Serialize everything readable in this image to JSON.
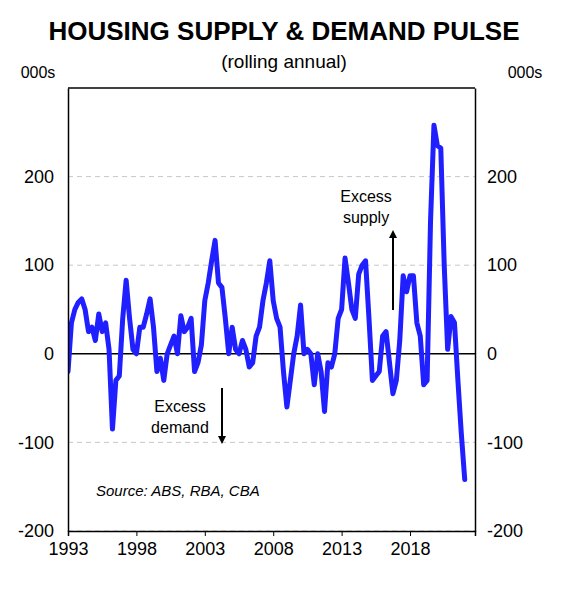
{
  "chart_data": {
    "type": "line",
    "title": "HOUSING SUPPLY & DEMAND PULSE",
    "subtitle": "(rolling annual)",
    "y_label": "000s",
    "y2_label": "000s",
    "source": "Source: ABS, RBA, CBA",
    "annotations": [
      {
        "text": [
          "Excess",
          "supply"
        ]
      },
      {
        "text": [
          "Excess",
          "demand"
        ]
      }
    ],
    "x": [
      1993,
      1993.25,
      1993.5,
      1993.75,
      1994,
      1994.25,
      1994.5,
      1994.75,
      1995,
      1995.25,
      1995.5,
      1995.75,
      1996,
      1996.25,
      1996.5,
      1996.75,
      1997,
      1997.25,
      1997.5,
      1997.75,
      1998,
      1998.25,
      1998.5,
      1998.75,
      1999,
      1999.25,
      1999.5,
      1999.75,
      2000,
      2000.25,
      2000.5,
      2000.75,
      2001,
      2001.25,
      2001.5,
      2001.75,
      2002,
      2002.25,
      2002.5,
      2002.75,
      2003,
      2003.25,
      2003.5,
      2003.75,
      2004,
      2004.25,
      2004.5,
      2004.75,
      2005,
      2005.25,
      2005.5,
      2005.75,
      2006,
      2006.25,
      2006.5,
      2006.75,
      2007,
      2007.25,
      2007.5,
      2007.75,
      2008,
      2008.25,
      2008.5,
      2008.75,
      2009,
      2009.25,
      2009.5,
      2009.75,
      2010,
      2010.25,
      2010.5,
      2010.75,
      2011,
      2011.25,
      2011.5,
      2011.75,
      2012,
      2012.25,
      2012.5,
      2012.75,
      2013,
      2013.25,
      2013.5,
      2013.75,
      2014,
      2014.25,
      2014.5,
      2014.75,
      2015,
      2015.25,
      2015.5,
      2015.75,
      2016,
      2016.25,
      2016.5,
      2016.75,
      2017,
      2017.25,
      2017.5,
      2017.75,
      2018,
      2018.25,
      2018.5,
      2018.75,
      2019,
      2019.25,
      2019.5,
      2019.75,
      2020,
      2020.25,
      2020.5,
      2020.75,
      2021,
      2021.25,
      2021.5,
      2021.75,
      2022
    ],
    "series": [
      {
        "color": "#1f1fff",
        "values": [
          -20,
          35,
          50,
          58,
          62,
          50,
          25,
          30,
          15,
          45,
          25,
          35,
          5,
          -85,
          -30,
          -25,
          40,
          83,
          40,
          5,
          0,
          30,
          30,
          45,
          62,
          30,
          -20,
          -5,
          -30,
          0,
          10,
          20,
          0,
          43,
          25,
          30,
          40,
          -20,
          -10,
          10,
          60,
          80,
          105,
          128,
          80,
          75,
          40,
          0,
          30,
          5,
          0,
          15,
          5,
          -15,
          -10,
          20,
          30,
          60,
          80,
          105,
          60,
          40,
          30,
          -20,
          -60,
          -30,
          0,
          20,
          55,
          0,
          5,
          0,
          -35,
          0,
          -20,
          -65,
          -10,
          -15,
          0,
          40,
          50,
          108,
          80,
          50,
          40,
          90,
          100,
          105,
          40,
          -30,
          -25,
          -20,
          20,
          25,
          -10,
          -45,
          -30,
          15,
          88,
          70,
          88,
          88,
          35,
          20,
          -35,
          -30,
          150,
          258,
          235,
          232,
          100,
          5,
          42,
          35,
          -30,
          -90,
          -142
        ]
      }
    ],
    "xlim": [
      1993,
      2022.75
    ],
    "xticks": [
      1993,
      1998,
      2003,
      2008,
      2013,
      2018
    ],
    "ylim": [
      -200,
      300
    ],
    "yticks": [
      -200,
      -100,
      0,
      100,
      200
    ],
    "y2lim": [
      -200,
      300
    ],
    "y2ticks": [
      -200,
      -100,
      0,
      100,
      200
    ],
    "grid": true
  }
}
